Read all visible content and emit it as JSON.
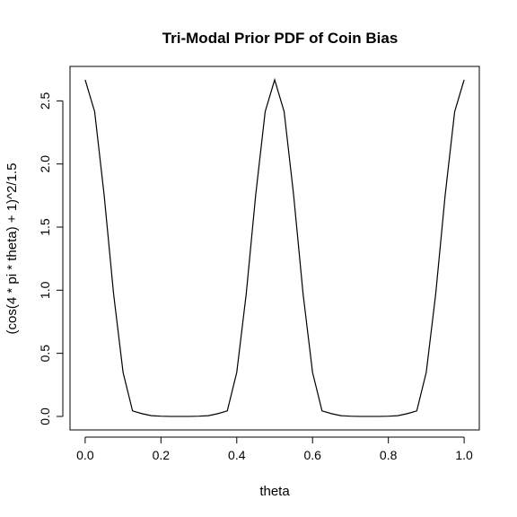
{
  "chart_data": {
    "type": "line",
    "title": "Tri-Modal Prior PDF of Coin Bias",
    "xlabel": "theta",
    "ylabel": "(cos(4 * pi * theta) + 1)^2/1.5",
    "xlim": [
      -0.04,
      1.04
    ],
    "ylim": [
      -0.107,
      2.773
    ],
    "x_ticks": [
      0.0,
      0.2,
      0.4,
      0.6,
      0.8,
      1.0
    ],
    "x_tick_labels": [
      "0.0",
      "0.2",
      "0.4",
      "0.6",
      "0.8",
      "1.0"
    ],
    "y_ticks": [
      0.0,
      0.5,
      1.0,
      1.5,
      2.0,
      2.5
    ],
    "y_tick_labels": [
      "0.0",
      "0.5",
      "1.0",
      "1.5",
      "2.0",
      "2.5"
    ],
    "grid": false,
    "legend": "none",
    "line_color": "#000000",
    "series": [
      {
        "x": [
          0.0,
          0.025,
          0.05,
          0.075,
          0.1,
          0.125,
          0.15,
          0.175,
          0.2,
          0.225,
          0.25,
          0.275,
          0.3,
          0.325,
          0.35,
          0.375,
          0.4,
          0.425,
          0.45,
          0.475,
          0.5,
          0.525,
          0.55,
          0.575,
          0.6,
          0.625,
          0.65,
          0.675,
          0.7,
          0.725,
          0.75,
          0.775,
          0.8,
          0.825,
          0.85,
          0.875,
          0.9,
          0.925,
          0.95,
          0.975,
          1.0
        ],
        "y": [
          2.667,
          2.415,
          1.756,
          0.971,
          0.349,
          0.044,
          0.022,
          0.006,
          0.002,
          0.0,
          0.0,
          0.0,
          0.002,
          0.006,
          0.022,
          0.044,
          0.349,
          0.971,
          1.756,
          2.415,
          2.667,
          2.415,
          1.756,
          0.971,
          0.349,
          0.044,
          0.022,
          0.006,
          0.002,
          0.0,
          0.0,
          0.0,
          0.002,
          0.006,
          0.022,
          0.044,
          0.349,
          0.971,
          1.756,
          2.415,
          2.667
        ]
      }
    ]
  }
}
